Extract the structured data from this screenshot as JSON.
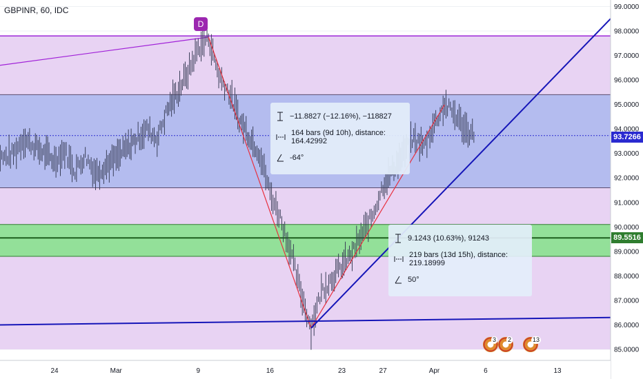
{
  "symbol": "GBPINR, 60, IDC",
  "marker": "D",
  "chart_data": {
    "type": "line",
    "title": "GBPINR, 60, IDC",
    "y_axis": {
      "range": [
        84.6,
        99.3
      ],
      "ticks": [
        "99.0000",
        "98.0000",
        "97.0000",
        "96.0000",
        "95.0000",
        "94.0000",
        "93.0000",
        "92.0000",
        "91.0000",
        "90.0000",
        "89.0000",
        "88.0000",
        "87.0000",
        "86.0000",
        "85.0000"
      ],
      "side": "right"
    },
    "x_axis": {
      "ticks": [
        "24",
        "Mar",
        "9",
        "16",
        "23",
        "27",
        "Apr",
        "6",
        "13"
      ]
    },
    "price_series": [
      {
        "x": "Feb 18",
        "y": 93.2
      },
      {
        "x": "Feb 19",
        "y": 92.8
      },
      {
        "x": "Feb 20",
        "y": 93.0
      },
      {
        "x": "Feb 21",
        "y": 93.6
      },
      {
        "x": "Feb 22",
        "y": 93.3
      },
      {
        "x": "Feb 24",
        "y": 92.7
      },
      {
        "x": "Feb 25",
        "y": 93.1
      },
      {
        "x": "Feb 26",
        "y": 92.3
      },
      {
        "x": "Feb 27",
        "y": 92.9
      },
      {
        "x": "Feb 28",
        "y": 92.2
      },
      {
        "x": "Mar 1",
        "y": 92.8
      },
      {
        "x": "Mar 3",
        "y": 93.6
      },
      {
        "x": "Mar 4",
        "y": 94.0
      },
      {
        "x": "Mar 5",
        "y": 93.6
      },
      {
        "x": "Mar 6",
        "y": 94.8
      },
      {
        "x": "Mar 8",
        "y": 96.3
      },
      {
        "x": "Mar 9",
        "y": 97.3
      },
      {
        "x": "Mar 10",
        "y": 97.75
      },
      {
        "x": "Mar 11",
        "y": 96.2
      },
      {
        "x": "Mar 12",
        "y": 95.5
      },
      {
        "x": "Mar 13",
        "y": 94.4
      },
      {
        "x": "Mar 15",
        "y": 93.0
      },
      {
        "x": "Mar 16",
        "y": 91.4
      },
      {
        "x": "Mar 17",
        "y": 90.4
      },
      {
        "x": "Mar 18",
        "y": 89.0
      },
      {
        "x": "Mar 19",
        "y": 87.3
      },
      {
        "x": "Mar 20",
        "y": 85.87
      },
      {
        "x": "Mar 21",
        "y": 87.4
      },
      {
        "x": "Mar 22",
        "y": 87.9
      },
      {
        "x": "Mar 24",
        "y": 88.9
      },
      {
        "x": "Mar 25",
        "y": 89.7
      },
      {
        "x": "Mar 26",
        "y": 90.5
      },
      {
        "x": "Mar 27",
        "y": 91.7
      },
      {
        "x": "Mar 29",
        "y": 93.0
      },
      {
        "x": "Mar 30",
        "y": 93.6
      },
      {
        "x": "Mar 31",
        "y": 93.3
      },
      {
        "x": "Apr 1",
        "y": 94.2
      },
      {
        "x": "Apr 2",
        "y": 94.99
      },
      {
        "x": "Apr 3",
        "y": 94.6
      },
      {
        "x": "Apr 4",
        "y": 94.0
      },
      {
        "x": "Apr 5",
        "y": 93.73
      }
    ],
    "current_price": "93.7266",
    "level_label": "89.5516",
    "zones": [
      {
        "name": "purple",
        "y_from": 85.0,
        "y_to": 97.8,
        "color": "#e8d3f3"
      },
      {
        "name": "blue",
        "y_from": 91.6,
        "y_to": 95.4,
        "color": "#b4bcef"
      },
      {
        "name": "green",
        "y_from": 88.8,
        "y_to": 90.1,
        "color": "#93e099"
      }
    ],
    "measurements": [
      {
        "line1": "−11.8827 (−12.16%), −118827",
        "line2": "164 bars (9d 10h), distance: 164.42992",
        "line3": "-64°"
      },
      {
        "line1": "9.1243 (10.63%), 91243",
        "line2": "219 bars (13d 15h), distance: 219.18999",
        "line3": "50°"
      }
    ],
    "event_flags": [
      {
        "count": "3"
      },
      {
        "count": "2"
      },
      {
        "count": "13"
      }
    ],
    "colors": {
      "candles": "#3a3f58",
      "trendline": "#1515b8",
      "measure": "#e8313f",
      "purple_line": "#a020d8",
      "current_price_tag": "#2a2ad0",
      "level_tag": "#2f7d2f"
    }
  }
}
